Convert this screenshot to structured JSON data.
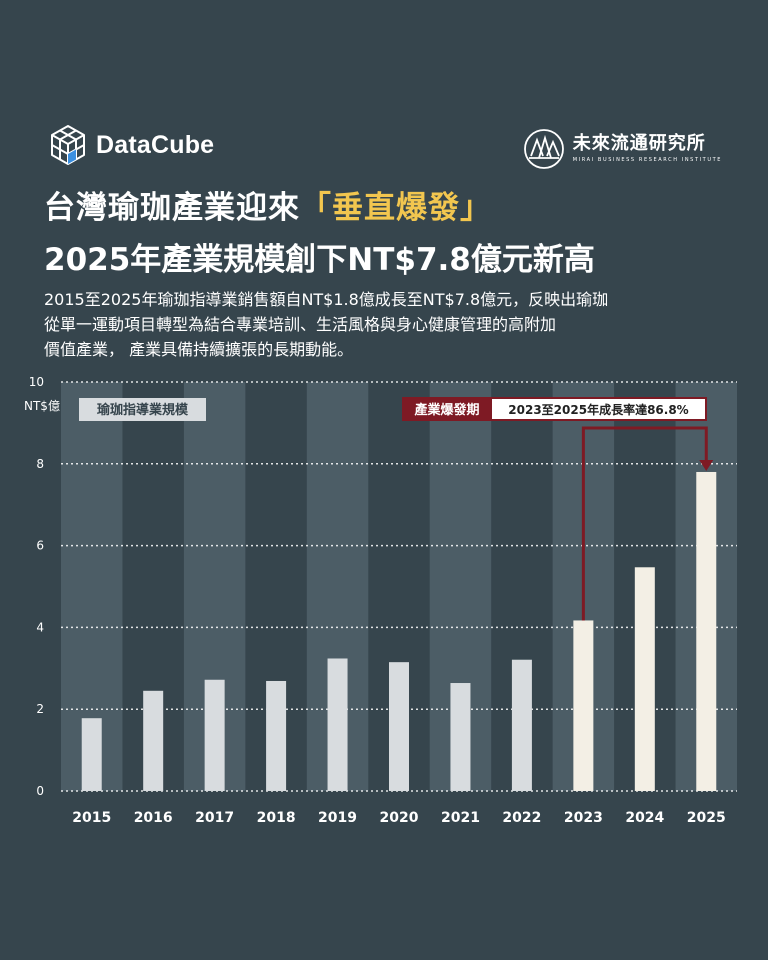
{
  "brand": {
    "name": "DataCube",
    "logo_icon": "cube-icon"
  },
  "org": {
    "name": "未來流通研究所",
    "subtitle": "MIRAI BUSINESS RESEARCH INSTITUTE",
    "logo_icon": "forest-seal-icon"
  },
  "title_line1": {
    "before": "台灣瑜珈產業迎來",
    "highlight": "「垂直爆發」"
  },
  "title_line2": "2025年產業規模創下NT$7.8億元新高",
  "description": [
    "2015至2025年瑜珈指導業銷售額自NT$1.8億成長至NT$7.8億元，反映出瑜珈",
    "從單一運動項目轉型為結合專業培訓、生活風格與身心健康管理的高附加",
    "價值產業， 產業具備持續擴張的長期動能。"
  ],
  "colors": {
    "background": "#36454d",
    "band": "#4c5d66",
    "bar_normal": "#d8dcdf",
    "bar_boom": "#f3efe5",
    "accent_red": "#7e1a24",
    "highlight_yellow": "#f2c64f"
  },
  "chart_data": {
    "type": "bar",
    "unit_label": "NT$億",
    "series_label": "瑜珈指導業規模",
    "categories": [
      "2015",
      "2016",
      "2017",
      "2018",
      "2019",
      "2020",
      "2021",
      "2022",
      "2023",
      "2024",
      "2025"
    ],
    "values": [
      1.78,
      2.45,
      2.72,
      2.69,
      3.24,
      3.15,
      2.64,
      3.21,
      4.17,
      5.47,
      7.8
    ],
    "highlighted_categories": [
      "2023",
      "2024",
      "2025"
    ],
    "ylim": [
      0,
      10
    ],
    "yticks": [
      "0",
      "2",
      "4",
      "6",
      "8",
      "10"
    ],
    "grid": true,
    "annotation": {
      "tag": "產業爆發期",
      "text": "2023至2025年成長率達86.8%",
      "from": "2023",
      "to": "2025"
    }
  }
}
